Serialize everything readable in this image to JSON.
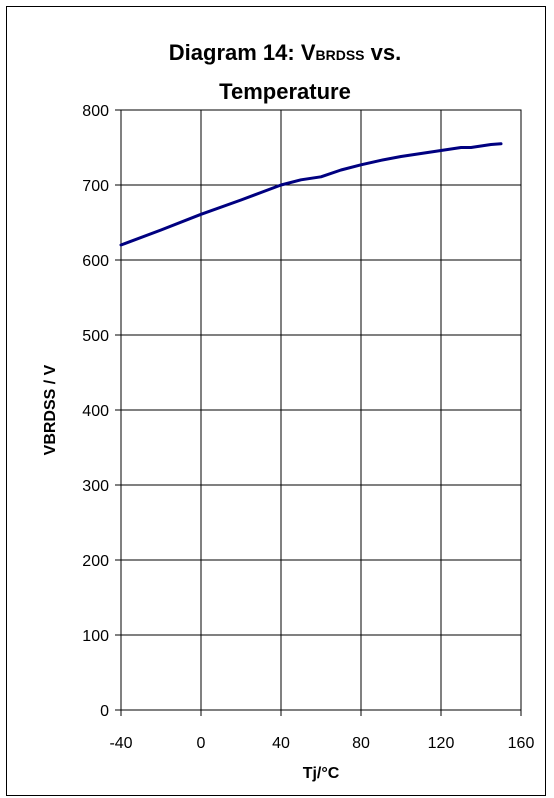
{
  "chart_data": {
    "type": "line",
    "title": {
      "prefix": "Diagram 14: V",
      "subscript": "BRDSS",
      "suffix": " vs.",
      "line2": "Temperature"
    },
    "xlabel": "Tj/°C",
    "ylabel": "VBRDSS / V",
    "xlim": [
      -40,
      160
    ],
    "ylim": [
      0,
      800
    ],
    "xticks": [
      -40,
      0,
      40,
      80,
      120,
      160
    ],
    "yticks": [
      0,
      100,
      200,
      300,
      400,
      500,
      600,
      700,
      800
    ],
    "grid": true,
    "line_color": "#000080",
    "series": [
      {
        "x": [
          -40,
          -20,
          0,
          20,
          30,
          40,
          50,
          60,
          70,
          80,
          90,
          100,
          110,
          120,
          130,
          135,
          140,
          145,
          150
        ],
        "y": [
          620,
          640,
          661,
          680,
          690,
          700,
          707,
          711,
          720,
          727,
          733,
          738,
          742,
          746,
          750,
          750,
          752,
          754,
          755
        ]
      }
    ]
  }
}
